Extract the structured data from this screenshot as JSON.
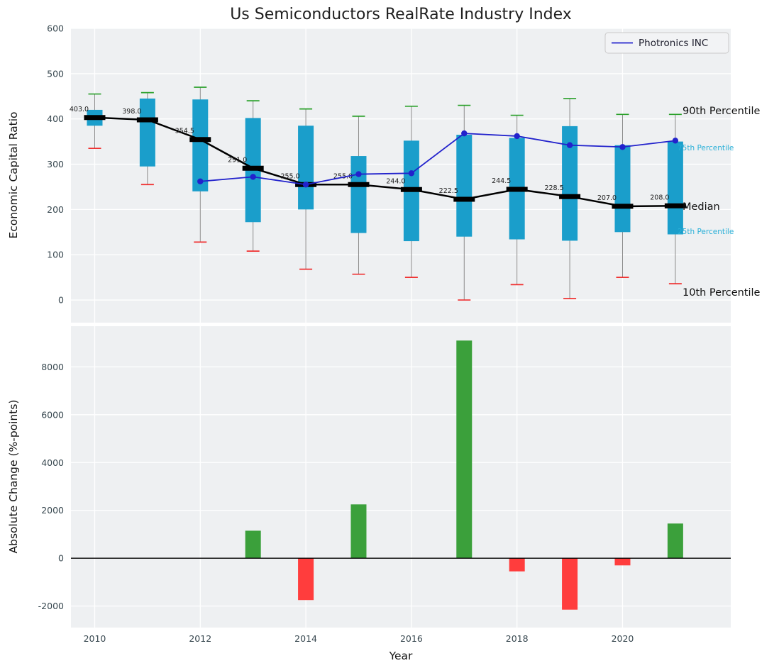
{
  "title": "Us Semiconductors RealRate Industry Index",
  "colors": {
    "plot_background": "#eef0f2",
    "grid": "#ffffff",
    "box_fill": "#1a9ecb",
    "whisker": "#8a8a8a",
    "cap_top": "#2aa12a",
    "cap_bottom": "#f03030",
    "median": "#000000",
    "photronics_line": "#2222cc",
    "annotation_minor": "#2ab0d8",
    "bar_positive": "#3ba03b",
    "bar_negative": "#ff3d3d"
  },
  "chart_data": [
    {
      "type": "box",
      "ylabel": "Economic Capital Ratio",
      "ylim": [
        -50,
        600
      ],
      "yticks": [
        0,
        100,
        200,
        300,
        400,
        500,
        600
      ],
      "xlim": [
        2009.55,
        2022.05
      ],
      "xticks": [
        2010,
        2012,
        2014,
        2016,
        2018,
        2020
      ],
      "grid": true,
      "legend_position": "upper right",
      "years": [
        2010,
        2011,
        2012,
        2013,
        2014,
        2015,
        2016,
        2017,
        2018,
        2019,
        2020,
        2021
      ],
      "p90": [
        455,
        458,
        470,
        440,
        422,
        406,
        428,
        430,
        408,
        445,
        410,
        410
      ],
      "p75": [
        420,
        445,
        443,
        402,
        385,
        318,
        352,
        365,
        358,
        384,
        342,
        350
      ],
      "median": [
        403,
        398,
        354.5,
        291,
        255,
        255,
        244,
        222.5,
        244.5,
        228.5,
        207,
        208
      ],
      "median_labels": [
        "403.0",
        "398.0",
        "354.5",
        "291.0",
        "255.0",
        "255.0",
        "244.0",
        "222.5",
        "244.5",
        "228.5",
        "207.0",
        "208.0"
      ],
      "p25": [
        385,
        295,
        240,
        172,
        200,
        148,
        130,
        140,
        134,
        131,
        150,
        145
      ],
      "p10": [
        335,
        255,
        128,
        108,
        68,
        57,
        50,
        0,
        34,
        3,
        50,
        36
      ],
      "series": [
        {
          "name": "Photronics INC",
          "x": [
            2012,
            2013,
            2014,
            2015,
            2016,
            2017,
            2018,
            2019,
            2020,
            2021
          ],
          "y": [
            262,
            272,
            255,
            278,
            280,
            368,
            362,
            342,
            338,
            352
          ]
        }
      ],
      "annotations": [
        {
          "text": "90th Percentile",
          "y": 418,
          "style": "major"
        },
        {
          "text": "75th Percentile",
          "y": 337,
          "style": "minor"
        },
        {
          "text": "Median",
          "y": 207,
          "style": "major"
        },
        {
          "text": "25th Percentile",
          "y": 152,
          "style": "minor"
        },
        {
          "text": "10th Percentile",
          "y": 17,
          "style": "major"
        }
      ]
    },
    {
      "type": "bar",
      "xlabel": "Year",
      "ylabel": "Absolute Change (%-points)",
      "ylim": [
        -2900,
        9700
      ],
      "yticks": [
        -2000,
        0,
        2000,
        4000,
        6000,
        8000
      ],
      "categories": [
        2010,
        2011,
        2012,
        2013,
        2014,
        2015,
        2016,
        2017,
        2018,
        2019,
        2020,
        2021
      ],
      "values": [
        0,
        0,
        0,
        1150,
        -1750,
        2250,
        0,
        9100,
        -550,
        -2150,
        -300,
        1450
      ]
    }
  ]
}
